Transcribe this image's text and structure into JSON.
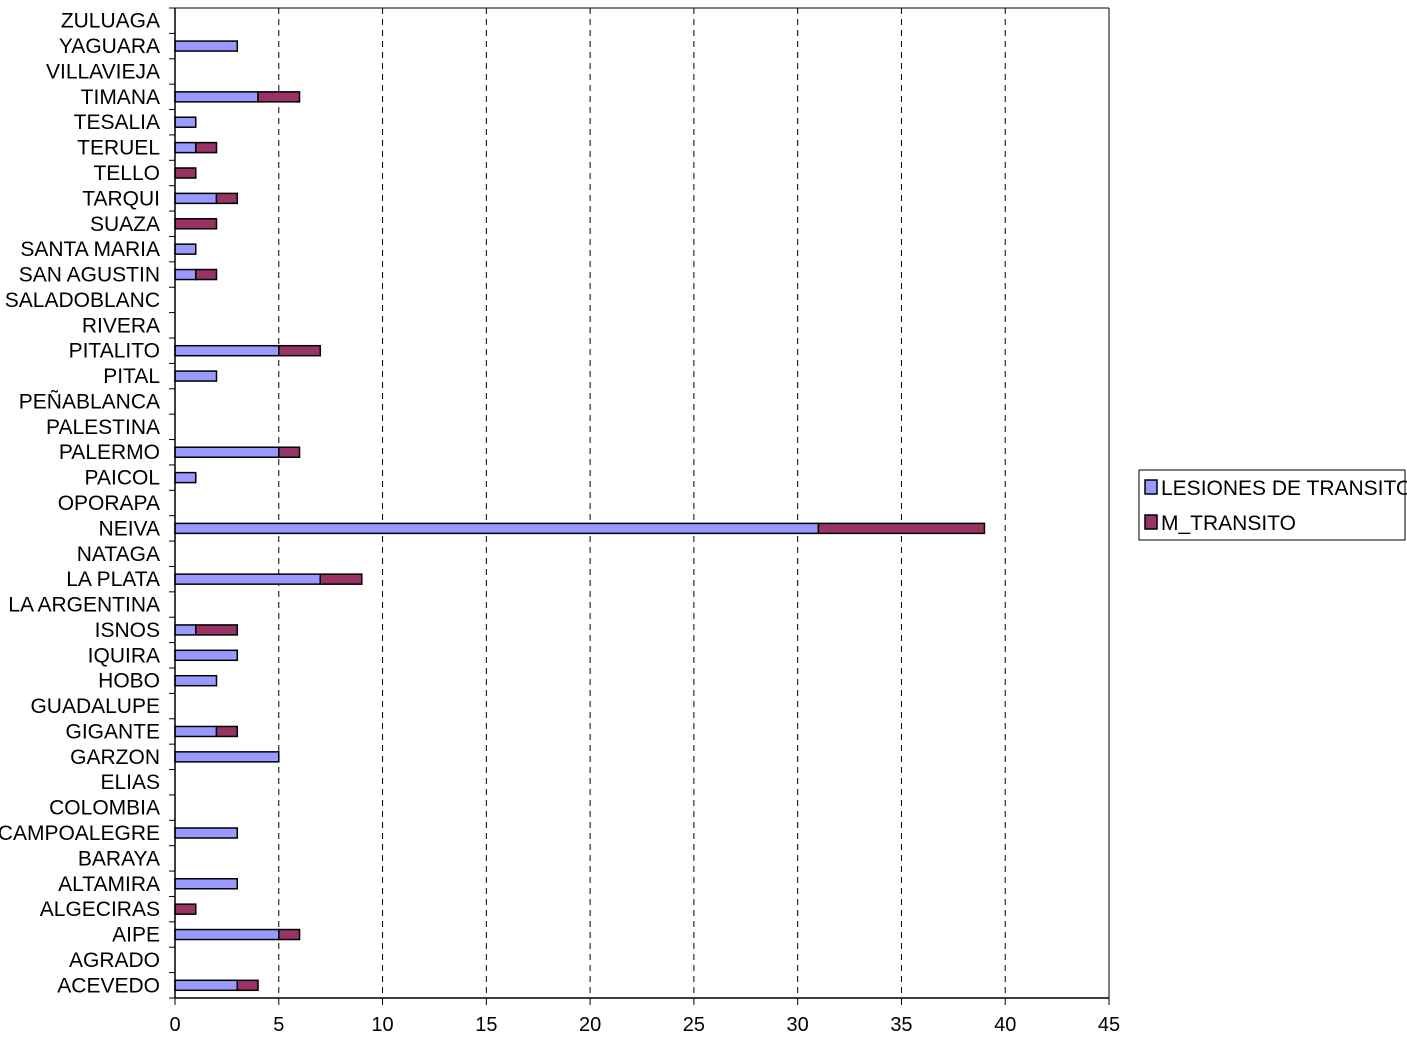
{
  "chart_data": {
    "type": "bar",
    "orientation": "horizontal",
    "stacked": true,
    "title": "",
    "xlabel": "",
    "ylabel": "",
    "xlim": [
      0,
      45
    ],
    "x_ticks": [
      0,
      5,
      10,
      15,
      20,
      25,
      30,
      35,
      40,
      45
    ],
    "grid": "vertical dashed",
    "legend_position": "right",
    "categories": [
      "ACEVEDO",
      "AGRADO",
      "AIPE",
      "ALGECIRAS",
      "ALTAMIRA",
      "BARAYA",
      "CAMPOALEGRE",
      "COLOMBIA",
      "ELIAS",
      "GARZON",
      "GIGANTE",
      "GUADALUPE",
      "HOBO",
      "IQUIRA",
      "ISNOS",
      "LA ARGENTINA",
      "LA PLATA",
      "NATAGA",
      "NEIVA",
      "OPORAPA",
      "PAICOL",
      "PALERMO",
      "PALESTINA",
      "PEÑABLANCA",
      "PITAL",
      "PITALITO",
      "RIVERA",
      "SALADOBLANC",
      "SAN AGUSTIN",
      "SANTA MARIA",
      "SUAZA",
      "TARQUI",
      "TELLO",
      "TERUEL",
      "TESALIA",
      "TIMANA",
      "VILLAVIEJA",
      "YAGUARA",
      "ZULUAGA"
    ],
    "series": [
      {
        "name": "LESIONES DE TRANSITO",
        "color": "#9999FF",
        "values": [
          3,
          0,
          5,
          0,
          3,
          0,
          3,
          0,
          0,
          5,
          2,
          0,
          2,
          3,
          1,
          0,
          7,
          0,
          31,
          0,
          1,
          5,
          0,
          0,
          2,
          5,
          0,
          0,
          1,
          1,
          0,
          2,
          0,
          1,
          1,
          4,
          0,
          3,
          0
        ]
      },
      {
        "name": "M_TRANSITO",
        "color": "#993366",
        "values": [
          1,
          0,
          1,
          1,
          0,
          0,
          0,
          0,
          0,
          0,
          1,
          0,
          0,
          0,
          2,
          0,
          2,
          0,
          8,
          0,
          0,
          1,
          0,
          0,
          0,
          2,
          0,
          0,
          1,
          0,
          2,
          1,
          1,
          1,
          0,
          2,
          0,
          0,
          0
        ]
      }
    ]
  }
}
